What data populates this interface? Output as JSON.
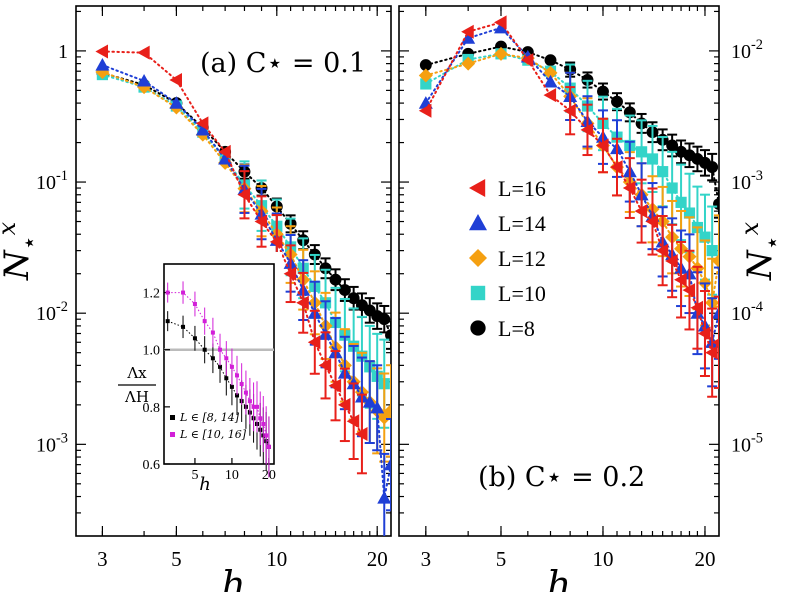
{
  "colors": {
    "L16": "#e8201a",
    "L14": "#1f3fd6",
    "L12": "#f5a011",
    "L10": "#33d4c8",
    "L8": "#000000",
    "inset_a": "#000000",
    "inset_b": "#d21fd8",
    "ref_line": "#bbbbbb"
  },
  "legend": {
    "location": "right panel, middle-left",
    "entries": [
      {
        "key": "L16",
        "label": "L=16",
        "marker": "triangle-left"
      },
      {
        "key": "L14",
        "label": "L=14",
        "marker": "triangle-up"
      },
      {
        "key": "L12",
        "label": "L=12",
        "marker": "diamond"
      },
      {
        "key": "L10",
        "label": "L=10",
        "marker": "square"
      },
      {
        "key": "L8",
        "label": "L=8",
        "marker": "circle"
      }
    ]
  },
  "chart_data": [
    {
      "type": "scatter",
      "panel": "a",
      "title": "(a) C⋆ = 0.1",
      "xlabel": "h",
      "ylabel": "N⋆x",
      "xscale": "log",
      "yscale": "log",
      "xlim": [
        2.5,
        22
      ],
      "ylim": [
        0.0002,
        2.2
      ],
      "xticks": [
        {
          "v": 3,
          "t": "3"
        },
        {
          "v": 5,
          "t": "5"
        },
        {
          "v": 10,
          "t": "10"
        },
        {
          "v": 20,
          "t": "20"
        }
      ],
      "yticks": [
        {
          "v": 1,
          "t": "1"
        },
        {
          "v": 0.1,
          "t": "10-1"
        },
        {
          "v": 0.01,
          "t": "10-2"
        },
        {
          "v": 0.001,
          "t": "10-3"
        }
      ],
      "series": [
        {
          "name": "L=8",
          "key": "L8",
          "x": [
            3,
            4,
            5,
            6,
            7,
            8,
            9,
            10,
            11,
            12,
            13,
            14,
            15,
            16,
            17,
            18,
            19,
            20,
            21,
            22
          ],
          "y": [
            0.68,
            0.55,
            0.4,
            0.26,
            0.17,
            0.12,
            0.09,
            0.065,
            0.048,
            0.036,
            0.028,
            0.022,
            0.018,
            0.015,
            0.013,
            0.0115,
            0.0105,
            0.0095,
            0.009,
            0.0068
          ]
        },
        {
          "name": "L=10",
          "key": "L10",
          "x": [
            3,
            4,
            5,
            6,
            7,
            8,
            9,
            10,
            11,
            12,
            13,
            14,
            15,
            16,
            17,
            18,
            19,
            20,
            21
          ],
          "y": [
            0.66,
            0.53,
            0.38,
            0.24,
            0.15,
            0.095,
            0.066,
            0.046,
            0.032,
            0.022,
            0.016,
            0.012,
            0.0085,
            0.0068,
            0.0056,
            0.0047,
            0.0039,
            0.0033,
            0.0029
          ]
        },
        {
          "name": "L=12",
          "key": "L12",
          "x": [
            3,
            4,
            5,
            6,
            7,
            8,
            9,
            10,
            11,
            12,
            13,
            14,
            15,
            16,
            17,
            18,
            19,
            20,
            21,
            22
          ],
          "y": [
            0.69,
            0.53,
            0.37,
            0.23,
            0.14,
            0.089,
            0.06,
            0.04,
            0.028,
            0.018,
            0.012,
            0.008,
            0.0055,
            0.004,
            0.003,
            0.0025,
            0.0021,
            0.0018,
            0.0016,
            0.0018
          ]
        },
        {
          "name": "L=14",
          "key": "L14",
          "x": [
            3,
            4,
            5,
            6,
            7,
            8,
            9,
            10,
            11,
            12,
            13,
            14,
            15,
            16,
            17,
            18,
            19,
            20,
            21,
            22
          ],
          "y": [
            0.78,
            0.59,
            0.4,
            0.25,
            0.15,
            0.088,
            0.057,
            0.036,
            0.024,
            0.015,
            0.01,
            0.0069,
            0.005,
            0.0035,
            0.0029,
            0.0023,
            0.0021,
            0.0019,
            0.00039,
            0.0007
          ]
        },
        {
          "name": "L=16",
          "key": "L16",
          "x": [
            3,
            4,
            5,
            6,
            7,
            8,
            9,
            10,
            11,
            12,
            13,
            14,
            15,
            16,
            17,
            18
          ],
          "y": [
            0.99,
            0.97,
            0.6,
            0.28,
            0.17,
            0.08,
            0.05,
            0.035,
            0.02,
            0.012,
            0.006,
            0.004,
            0.0028,
            0.002,
            0.0015,
            0.0012
          ]
        }
      ]
    },
    {
      "type": "scatter",
      "panel": "b",
      "title": "(b) C⋆ = 0.2",
      "xlabel": "h",
      "ylabel": "N⋆x",
      "xscale": "log",
      "yscale": "log",
      "xlim": [
        2.5,
        22
      ],
      "ylim": [
        2e-06,
        0.022
      ],
      "xticks": [
        {
          "v": 3,
          "t": "3"
        },
        {
          "v": 5,
          "t": "5"
        },
        {
          "v": 10,
          "t": "10"
        },
        {
          "v": 20,
          "t": "20"
        }
      ],
      "yticks": [
        {
          "v": 0.01,
          "t": "10-2"
        },
        {
          "v": 0.001,
          "t": "10-3"
        },
        {
          "v": 0.0001,
          "t": "10-4"
        },
        {
          "v": 1e-05,
          "t": "10-5"
        }
      ],
      "series": [
        {
          "name": "L=8",
          "key": "L8",
          "x": [
            3,
            4,
            5,
            6,
            7,
            8,
            9,
            10,
            11,
            12,
            13,
            14,
            15,
            16,
            17,
            18,
            19,
            20,
            21,
            22
          ],
          "y": [
            0.0078,
            0.0095,
            0.0108,
            0.0098,
            0.0085,
            0.0072,
            0.006,
            0.0049,
            0.0041,
            0.0034,
            0.0028,
            0.0024,
            0.0021,
            0.0019,
            0.0017,
            0.0016,
            0.0015,
            0.0014,
            0.0013,
            0.00068
          ]
        },
        {
          "name": "L=10",
          "key": "L10",
          "x": [
            3,
            4,
            5,
            6,
            7,
            8,
            9,
            10,
            11,
            12,
            13,
            14,
            15,
            16,
            17,
            18,
            19,
            20,
            21
          ],
          "y": [
            0.0056,
            0.0086,
            0.0095,
            0.0085,
            0.007,
            0.0052,
            0.0038,
            0.0028,
            0.0022,
            0.0019,
            0.0017,
            0.0015,
            0.0012,
            0.0009,
            0.0007,
            0.00058,
            0.00045,
            0.00038,
            0.0003
          ]
        },
        {
          "name": "L=12",
          "key": "L12",
          "x": [
            3,
            4,
            5,
            6,
            7,
            8,
            9,
            10,
            11,
            12,
            13,
            14,
            15,
            16,
            17,
            18,
            19,
            20,
            21,
            22
          ],
          "y": [
            0.0065,
            0.008,
            0.0095,
            0.0088,
            0.0068,
            0.0045,
            0.0028,
            0.0019,
            0.0013,
            0.001,
            0.0008,
            0.00062,
            0.0005,
            0.00038,
            0.00031,
            0.00027,
            0.00022,
            0.00017,
            0.00012,
            0.00025
          ]
        },
        {
          "name": "L=14",
          "key": "L14",
          "x": [
            3,
            4,
            5,
            6,
            7,
            8,
            9,
            10,
            11,
            12,
            13,
            14,
            15,
            16,
            17,
            18,
            19,
            20,
            21,
            22
          ],
          "y": [
            0.004,
            0.0125,
            0.015,
            0.009,
            0.0058,
            0.0045,
            0.0029,
            0.0022,
            0.0018,
            0.0012,
            0.0008,
            0.00055,
            0.00035,
            0.00028,
            0.00022,
            0.0002,
            0.0001,
            8e-05,
            6e-05,
            0.0001
          ]
        },
        {
          "name": "L=16",
          "key": "L16",
          "x": [
            3,
            4,
            5,
            6,
            7,
            8,
            9,
            10,
            11,
            12,
            13,
            14,
            15,
            16,
            17,
            18,
            19,
            20,
            21,
            22
          ],
          "y": [
            0.0035,
            0.014,
            0.0165,
            0.0085,
            0.0046,
            0.0035,
            0.0025,
            0.0019,
            0.0013,
            0.0009,
            0.0006,
            0.0005,
            0.0003,
            0.00025,
            0.00018,
            0.00015,
            0.00011,
            7e-05,
            5e-05,
            6e-05
          ]
        }
      ]
    },
    {
      "type": "scatter",
      "panel": "inset",
      "xlabel": "h",
      "ylabel_num": "Λx",
      "ylabel_den": "ΛH",
      "xscale": "log",
      "yscale": "linear",
      "xlim": [
        2.8,
        22
      ],
      "ylim": [
        0.6,
        1.3
      ],
      "xticks": [
        {
          "v": 5,
          "t": "5"
        },
        {
          "v": 10,
          "t": "10"
        },
        {
          "v": 20,
          "t": "20"
        }
      ],
      "yticks": [
        {
          "v": 0.6,
          "t": "0.6"
        },
        {
          "v": 0.8,
          "t": "0.8"
        },
        {
          "v": 1.0,
          "t": "1.0"
        },
        {
          "v": 1.2,
          "t": "1.2"
        }
      ],
      "reference_y": 1.0,
      "series": [
        {
          "name": "L ∈ [8, 14]",
          "key": "inset_a",
          "x": [
            3,
            4,
            5,
            6,
            7,
            8,
            9,
            10,
            11,
            12,
            13,
            14,
            15,
            16,
            17,
            18,
            19,
            20
          ],
          "y": [
            1.1,
            1.08,
            1.04,
            1.0,
            0.97,
            0.94,
            0.9,
            0.87,
            0.84,
            0.82,
            0.8,
            0.78,
            0.76,
            0.74,
            0.72,
            0.7,
            0.68,
            0.66
          ]
        },
        {
          "name": "L ∈ [10, 16]",
          "key": "inset_b",
          "x": [
            3,
            4,
            5,
            6,
            7,
            8,
            9,
            10,
            11,
            12,
            13,
            14,
            15,
            16,
            17,
            18,
            19,
            20
          ],
          "y": [
            1.2,
            1.2,
            1.16,
            1.1,
            1.06,
            1.0,
            0.97,
            0.94,
            0.91,
            0.88,
            0.85,
            0.82,
            0.8,
            0.8,
            0.76,
            0.74,
            0.7,
            0.66
          ]
        }
      ]
    }
  ]
}
